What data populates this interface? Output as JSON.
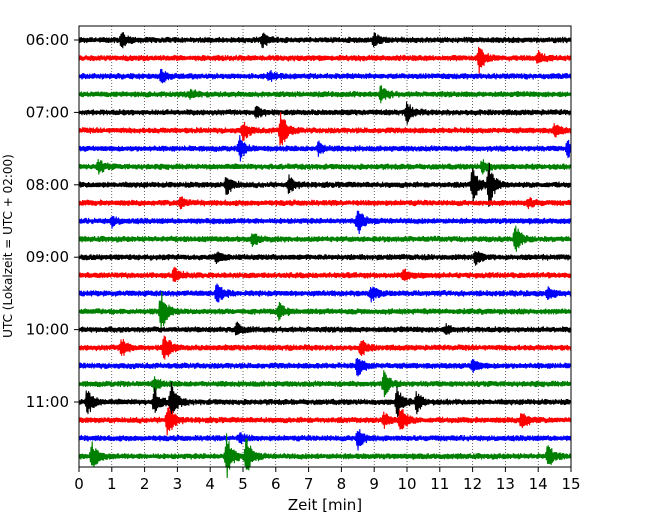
{
  "chart_data": {
    "type": "line",
    "subtype": "seismic helicorder (dayplot)",
    "xlabel": "Zeit  [min]",
    "ylabel": "UTC (Lokalzeit = UTC + 02:00)",
    "xlim": [
      0,
      15
    ],
    "x_ticks": [
      "0",
      "1",
      "2",
      "3",
      "4",
      "5",
      "6",
      "7",
      "8",
      "9",
      "10",
      "11",
      "12",
      "13",
      "14",
      "15"
    ],
    "y_ticks": [
      "06:00",
      "07:00",
      "08:00",
      "09:00",
      "10:00",
      "11:00"
    ],
    "vertical_grid": "dotted at each minute",
    "trace_interval_min": 15,
    "trace_start_times": [
      "06:00",
      "06:15",
      "06:30",
      "06:45",
      "07:00",
      "07:15",
      "07:30",
      "07:45",
      "08:00",
      "08:15",
      "08:30",
      "08:45",
      "09:00",
      "09:15",
      "09:30",
      "09:45",
      "10:00",
      "10:15",
      "10:30",
      "10:45",
      "11:00",
      "11:15",
      "11:30",
      "11:45"
    ],
    "trace_colors": [
      "#000000",
      "#ff0000",
      "#0000ff",
      "#008000"
    ],
    "events": [
      {
        "trace": 0,
        "x": 1.3,
        "amp": 0.5
      },
      {
        "trace": 0,
        "x": 5.6,
        "amp": 0.4
      },
      {
        "trace": 0,
        "x": 9.0,
        "amp": 0.4
      },
      {
        "trace": 1,
        "x": 12.2,
        "amp": 0.8
      },
      {
        "trace": 1,
        "x": 14.0,
        "amp": 0.4
      },
      {
        "trace": 2,
        "x": 2.5,
        "amp": 0.4
      },
      {
        "trace": 2,
        "x": 5.8,
        "amp": 0.3
      },
      {
        "trace": 3,
        "x": 9.2,
        "amp": 0.5
      },
      {
        "trace": 3,
        "x": 3.4,
        "amp": 0.3
      },
      {
        "trace": 4,
        "x": 10.0,
        "amp": 0.6
      },
      {
        "trace": 4,
        "x": 5.4,
        "amp": 0.4
      },
      {
        "trace": 5,
        "x": 6.15,
        "amp": 1.3
      },
      {
        "trace": 5,
        "x": 5.0,
        "amp": 0.6
      },
      {
        "trace": 5,
        "x": 14.5,
        "amp": 0.4
      },
      {
        "trace": 6,
        "x": 4.9,
        "amp": 0.7
      },
      {
        "trace": 6,
        "x": 14.9,
        "amp": 0.5
      },
      {
        "trace": 6,
        "x": 7.3,
        "amp": 0.4
      },
      {
        "trace": 7,
        "x": 0.6,
        "amp": 0.4
      },
      {
        "trace": 7,
        "x": 12.3,
        "amp": 0.4
      },
      {
        "trace": 8,
        "x": 4.5,
        "amp": 0.6
      },
      {
        "trace": 8,
        "x": 6.4,
        "amp": 0.5
      },
      {
        "trace": 8,
        "x": 12.0,
        "amp": 1.2
      },
      {
        "trace": 8,
        "x": 12.5,
        "amp": 1.4
      },
      {
        "trace": 9,
        "x": 3.1,
        "amp": 0.4
      },
      {
        "trace": 9,
        "x": 13.7,
        "amp": 0.3
      },
      {
        "trace": 10,
        "x": 8.5,
        "amp": 0.9
      },
      {
        "trace": 10,
        "x": 1.0,
        "amp": 0.3
      },
      {
        "trace": 11,
        "x": 13.3,
        "amp": 0.9
      },
      {
        "trace": 11,
        "x": 5.3,
        "amp": 0.4
      },
      {
        "trace": 12,
        "x": 12.1,
        "amp": 0.4
      },
      {
        "trace": 12,
        "x": 4.2,
        "amp": 0.3
      },
      {
        "trace": 13,
        "x": 2.9,
        "amp": 0.5
      },
      {
        "trace": 13,
        "x": 9.9,
        "amp": 0.4
      },
      {
        "trace": 14,
        "x": 4.2,
        "amp": 0.7
      },
      {
        "trace": 14,
        "x": 8.9,
        "amp": 0.5
      },
      {
        "trace": 14,
        "x": 14.3,
        "amp": 0.4
      },
      {
        "trace": 15,
        "x": 2.5,
        "amp": 1.3
      },
      {
        "trace": 15,
        "x": 6.1,
        "amp": 0.5
      },
      {
        "trace": 16,
        "x": 4.8,
        "amp": 0.4
      },
      {
        "trace": 16,
        "x": 11.2,
        "amp": 0.3
      },
      {
        "trace": 17,
        "x": 1.3,
        "amp": 0.6
      },
      {
        "trace": 17,
        "x": 2.6,
        "amp": 1.0
      },
      {
        "trace": 17,
        "x": 8.6,
        "amp": 0.5
      },
      {
        "trace": 18,
        "x": 8.5,
        "amp": 0.7
      },
      {
        "trace": 18,
        "x": 12.0,
        "amp": 0.4
      },
      {
        "trace": 19,
        "x": 9.3,
        "amp": 0.8
      },
      {
        "trace": 19,
        "x": 2.3,
        "amp": 0.4
      },
      {
        "trace": 20,
        "x": 0.25,
        "amp": 0.9
      },
      {
        "trace": 20,
        "x": 2.3,
        "amp": 0.8
      },
      {
        "trace": 20,
        "x": 2.8,
        "amp": 1.2
      },
      {
        "trace": 20,
        "x": 9.7,
        "amp": 1.0
      },
      {
        "trace": 20,
        "x": 10.3,
        "amp": 0.6
      },
      {
        "trace": 21,
        "x": 2.7,
        "amp": 1.1
      },
      {
        "trace": 21,
        "x": 9.8,
        "amp": 0.9
      },
      {
        "trace": 21,
        "x": 13.5,
        "amp": 0.6
      },
      {
        "trace": 21,
        "x": 9.3,
        "amp": 0.5
      },
      {
        "trace": 22,
        "x": 8.5,
        "amp": 0.7
      },
      {
        "trace": 22,
        "x": 4.9,
        "amp": 0.3
      },
      {
        "trace": 23,
        "x": 0.4,
        "amp": 0.8
      },
      {
        "trace": 23,
        "x": 4.5,
        "amp": 1.4
      },
      {
        "trace": 23,
        "x": 5.1,
        "amp": 1.3
      },
      {
        "trace": 23,
        "x": 14.3,
        "amp": 0.7
      }
    ]
  }
}
